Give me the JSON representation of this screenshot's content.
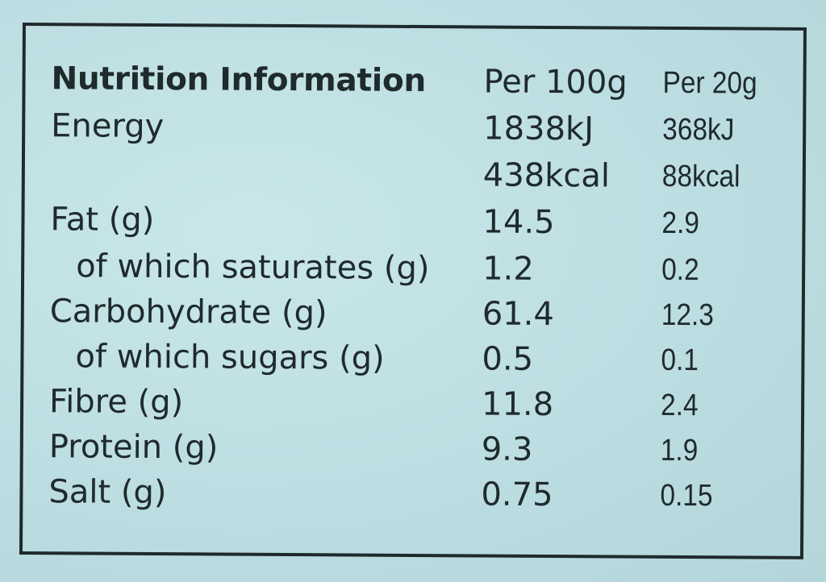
{
  "header": {
    "title": "Nutrition Information",
    "per100": "Per 100g",
    "per20": "Per 20g"
  },
  "rows": [
    {
      "label": "Energy",
      "per100": "1838kJ",
      "per20": "368kJ"
    },
    {
      "label": "",
      "per100": "438kcal",
      "per20": "88kcal"
    },
    {
      "label": "Fat (g)",
      "per100": "14.5",
      "per20": "2.9"
    },
    {
      "label": "of which saturates (g)",
      "per100": "1.2",
      "per20": "0.2"
    },
    {
      "label": "Carbohydrate (g)",
      "per100": "61.4",
      "per20": "12.3"
    },
    {
      "label": "of which sugars (g)",
      "per100": "0.5",
      "per20": "0.1"
    },
    {
      "label": "Fibre (g)",
      "per100": "11.8",
      "per20": "2.4"
    },
    {
      "label": "Protein (g)",
      "per100": "9.3",
      "per20": "1.9"
    },
    {
      "label": "Salt (g)",
      "per100": "0.75",
      "per20": "0.15"
    }
  ]
}
